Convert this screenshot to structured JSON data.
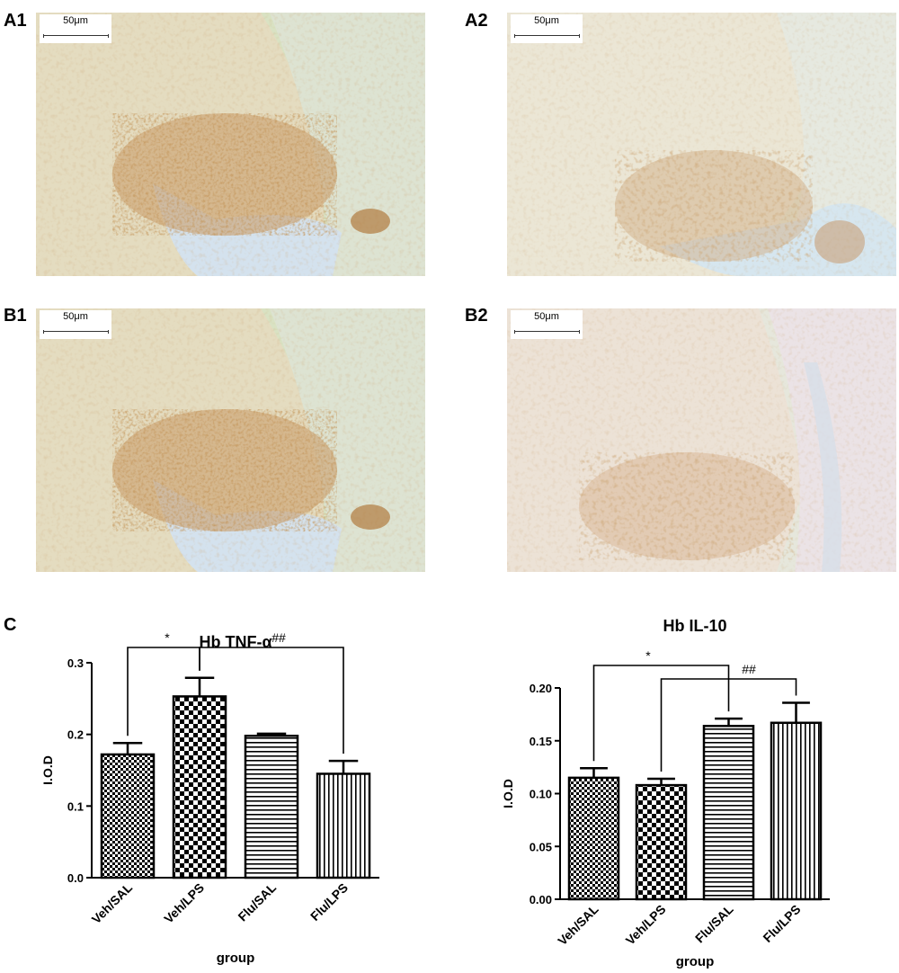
{
  "panels": {
    "a1": {
      "label": "A1",
      "scale": "50μm"
    },
    "a2": {
      "label": "A2",
      "scale": "50μm"
    },
    "b1": {
      "label": "B1",
      "scale": "50μm"
    },
    "b2": {
      "label": "B2",
      "scale": "50μm"
    },
    "c": {
      "label": "C"
    }
  },
  "chart_data": [
    {
      "type": "bar",
      "title": "Hb TNF-α",
      "xlabel": "group",
      "ylabel": "I.O.D",
      "ylim": [
        0,
        0.3
      ],
      "yticks": [
        "0.0",
        "0.1",
        "0.2",
        "0.3"
      ],
      "categories": [
        "Veh/SAL",
        "Veh/LPS",
        "Flu/SAL",
        "Flu/LPS"
      ],
      "values": [
        0.172,
        0.253,
        0.198,
        0.145
      ],
      "errors": [
        0.016,
        0.026,
        0.003,
        0.018
      ],
      "patterns": [
        "small-check",
        "large-check",
        "horizontal-lines",
        "vertical-lines"
      ],
      "annotations": [
        {
          "from": "Veh/SAL",
          "to": "Veh/LPS",
          "symbol": "*"
        },
        {
          "from": "Veh/LPS",
          "to": "Flu/LPS",
          "symbol": "##"
        }
      ],
      "grid": false
    },
    {
      "type": "bar",
      "title": "Hb IL-10",
      "xlabel": "group",
      "ylabel": "I.O.D",
      "ylim": [
        0,
        0.2
      ],
      "yticks": [
        "0.00",
        "0.05",
        "0.10",
        "0.15",
        "0.20"
      ],
      "categories": [
        "Veh/SAL",
        "Veh/LPS",
        "Flu/SAL",
        "Flu/LPS"
      ],
      "values": [
        0.115,
        0.108,
        0.164,
        0.167
      ],
      "errors": [
        0.009,
        0.006,
        0.007,
        0.019
      ],
      "patterns": [
        "small-check",
        "large-check",
        "horizontal-lines",
        "vertical-lines"
      ],
      "annotations": [
        {
          "from": "Veh/SAL",
          "to": "Flu/SAL",
          "symbol": "*"
        },
        {
          "from": "Veh/LPS",
          "to": "Flu/LPS",
          "symbol": "##"
        }
      ],
      "grid": false
    }
  ]
}
